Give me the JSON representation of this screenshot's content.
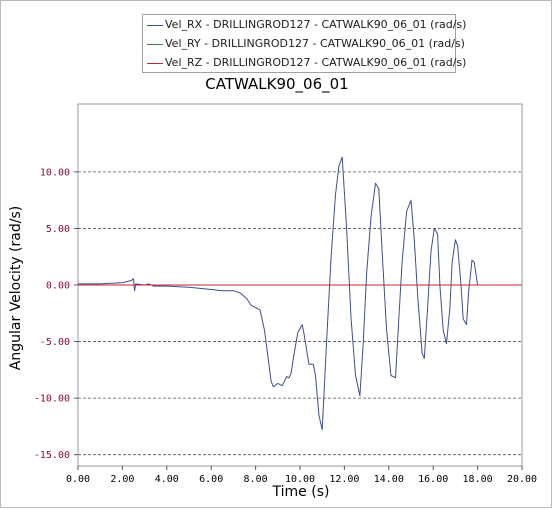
{
  "chart_data": {
    "type": "line",
    "title": "CATWALK90_06_01",
    "xlabel": "Time (s)",
    "ylabel": "Angular Velocity (rad/s)",
    "xlim": [
      0,
      20
    ],
    "ylim": [
      -16,
      16
    ],
    "x_ticks": [
      "0.00",
      "2.00",
      "4.00",
      "6.00",
      "8.00",
      "10.00",
      "12.00",
      "14.00",
      "16.00",
      "18.00",
      "20.00"
    ],
    "y_ticks": [
      "10.00",
      "5.00",
      "0.00",
      "-5.00",
      "-10.00",
      "-15.00"
    ],
    "y_tick_values": [
      10,
      5,
      0,
      -5,
      -10,
      -15
    ],
    "grid": "horizontal-dashed",
    "legend_position": "top",
    "series": [
      {
        "name": "Vel_RX - DRILLINGROD127 - CATWALK90_06_01 (rad/s)",
        "color": "#3f4f8c",
        "x": [
          0.0,
          1.0,
          2.0,
          2.4,
          2.5,
          2.55,
          2.6,
          3.0,
          3.2,
          3.4,
          4.0,
          5.0,
          5.5,
          6.0,
          6.5,
          7.0,
          7.3,
          7.6,
          7.8,
          8.0,
          8.2,
          8.4,
          8.6,
          8.7,
          8.8,
          9.0,
          9.2,
          9.4,
          9.5,
          9.6,
          9.7,
          9.9,
          10.1,
          10.2,
          10.4,
          10.6,
          10.7,
          10.85,
          11.0,
          11.2,
          11.4,
          11.6,
          11.75,
          11.9,
          12.1,
          12.3,
          12.5,
          12.7,
          12.85,
          13.0,
          13.2,
          13.4,
          13.55,
          13.7,
          13.9,
          14.1,
          14.3,
          14.45,
          14.6,
          14.8,
          15.0,
          15.15,
          15.3,
          15.5,
          15.6,
          15.75,
          15.9,
          16.05,
          16.2,
          16.3,
          16.45,
          16.6,
          16.75,
          16.85,
          17.0,
          17.1,
          17.25,
          17.35,
          17.5,
          17.6,
          17.75,
          17.85,
          18.0,
          19.0,
          20.0
        ],
        "values": [
          0.1,
          0.1,
          0.2,
          0.4,
          0.55,
          -0.5,
          0.1,
          0.0,
          0.1,
          -0.1,
          -0.1,
          -0.2,
          -0.3,
          -0.4,
          -0.5,
          -0.5,
          -0.7,
          -1.2,
          -1.8,
          -2.0,
          -2.2,
          -4.0,
          -7.0,
          -8.5,
          -9.0,
          -8.7,
          -8.9,
          -8.1,
          -8.2,
          -7.8,
          -6.5,
          -4.2,
          -3.5,
          -4.5,
          -7.0,
          -7.0,
          -8.0,
          -11.5,
          -12.8,
          -5.0,
          2.5,
          8.0,
          10.5,
          11.3,
          5.0,
          -3.0,
          -8.0,
          -9.8,
          -5.0,
          1.0,
          6.0,
          9.0,
          8.5,
          3.0,
          -4.0,
          -8.0,
          -8.2,
          -3.0,
          2.0,
          6.5,
          7.5,
          4.0,
          -1.0,
          -6.0,
          -6.5,
          -2.0,
          3.0,
          5.0,
          4.5,
          0.0,
          -4.0,
          -5.2,
          -2.0,
          2.0,
          4.0,
          3.5,
          0.0,
          -3.0,
          -3.5,
          -0.5,
          2.2,
          2.0,
          0.0,
          0.0,
          0.0
        ]
      },
      {
        "name": "Vel_RY - DRILLINGROD127 - CATWALK90_06_01 (rad/s)",
        "color": "#3f8c3f",
        "x": [
          0,
          20
        ],
        "values": [
          0,
          0
        ]
      },
      {
        "name": "Vel_RZ - DRILLINGROD127 - CATWALK90_06_01 (rad/s)",
        "color": "#c0262d",
        "x": [
          0,
          20
        ],
        "values": [
          0,
          0
        ]
      }
    ]
  }
}
